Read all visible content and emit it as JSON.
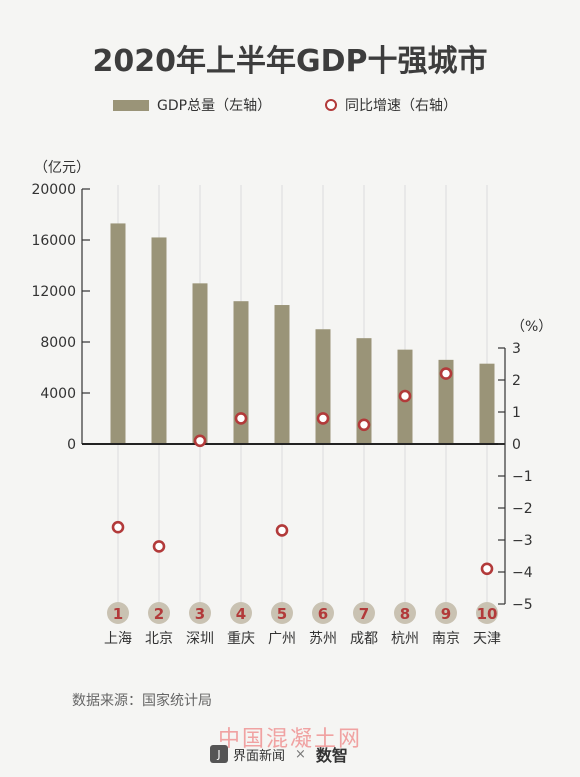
{
  "title": "2020年上半年GDP十强城市",
  "legend": {
    "bar_label": "GDP总量（左轴）",
    "dot_label": "同比增速（右轴）"
  },
  "source": "数据来源：国家统计局",
  "watermark": "中国混凝土网",
  "footer": {
    "brand": "界面新闻",
    "separator": "×",
    "partner": "数智"
  },
  "colors": {
    "bar": "#9a9478",
    "dot": "#b23a3a",
    "badge": "#c9c2b2",
    "badge_text": "#b23a3a"
  },
  "chart_data": {
    "type": "bar",
    "categories": [
      "上海",
      "北京",
      "深圳",
      "重庆",
      "广州",
      "苏州",
      "成都",
      "杭州",
      "南京",
      "天津"
    ],
    "ranks": [
      "1",
      "2",
      "3",
      "4",
      "5",
      "6",
      "7",
      "8",
      "9",
      "10"
    ],
    "series": [
      {
        "name": "GDP总量（左轴）",
        "type": "bar",
        "axis": "left",
        "values": [
          17300,
          16200,
          12600,
          11200,
          10900,
          9000,
          8300,
          7400,
          6600,
          6300
        ]
      },
      {
        "name": "同比增速（右轴）",
        "type": "scatter",
        "axis": "right",
        "values": [
          -2.6,
          -3.2,
          0.1,
          0.8,
          -2.7,
          0.8,
          0.6,
          1.5,
          2.2,
          -3.9
        ]
      }
    ],
    "left_axis": {
      "unit_label": "（亿元）",
      "ylim": [
        0,
        20000
      ],
      "ticks": [
        "20000",
        "16000",
        "12000",
        "8000",
        "4000",
        "0"
      ]
    },
    "right_axis": {
      "unit_label": "（%）",
      "ylim": [
        -5,
        3
      ],
      "ticks": [
        "3",
        "2",
        "1",
        "0",
        "−1",
        "−2",
        "−3",
        "−4",
        "−5"
      ]
    }
  }
}
